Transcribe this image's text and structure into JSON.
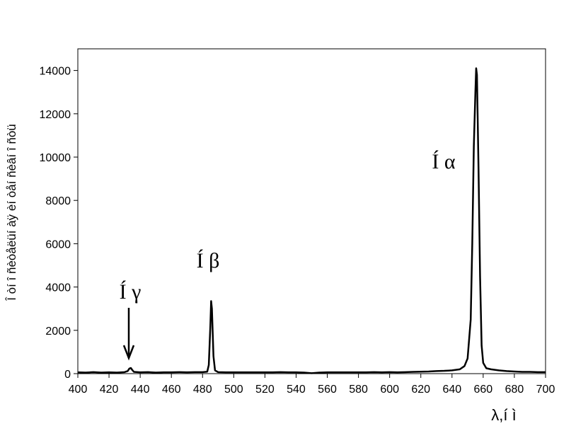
{
  "chart_data": {
    "type": "line",
    "xlabel": "λ,í ì",
    "ylabel": "Î òí î ñèòåëüí àÿ èí òåí ñèâí î ñòü",
    "annotations": [
      "Í γ",
      "Í β",
      "Í α"
    ],
    "color": "#000000",
    "x": [
      400,
      405,
      410,
      415,
      420,
      425,
      430,
      432,
      433,
      434,
      435,
      436,
      440,
      445,
      450,
      455,
      460,
      465,
      470,
      475,
      480,
      483,
      484,
      485,
      485.5,
      486,
      487,
      488,
      490,
      495,
      500,
      505,
      510,
      515,
      520,
      525,
      530,
      535,
      540,
      545,
      550,
      555,
      560,
      565,
      570,
      575,
      580,
      585,
      590,
      595,
      600,
      605,
      610,
      615,
      620,
      625,
      630,
      635,
      640,
      645,
      648,
      650,
      652,
      653,
      654,
      655,
      655.5,
      656,
      657,
      658,
      659,
      660,
      662,
      665,
      670,
      675,
      680,
      685,
      690,
      695,
      700
    ],
    "values": [
      60,
      50,
      70,
      50,
      60,
      50,
      70,
      120,
      230,
      260,
      160,
      80,
      60,
      70,
      50,
      60,
      60,
      70,
      60,
      70,
      70,
      90,
      400,
      2200,
      3350,
      3000,
      800,
      150,
      70,
      60,
      60,
      60,
      60,
      60,
      60,
      60,
      70,
      60,
      60,
      50,
      20,
      50,
      60,
      60,
      60,
      60,
      60,
      60,
      70,
      60,
      70,
      60,
      70,
      80,
      90,
      100,
      120,
      130,
      150,
      200,
      350,
      700,
      2500,
      6000,
      10500,
      13000,
      14100,
      13800,
      9500,
      4500,
      1300,
      500,
      250,
      200,
      150,
      120,
      100,
      80,
      80,
      70,
      70
    ],
    "xlim": [
      400,
      700
    ],
    "ylim": [
      0,
      15000
    ],
    "xticks": [
      400,
      420,
      440,
      460,
      480,
      500,
      520,
      540,
      560,
      580,
      600,
      620,
      640,
      660,
      680,
      700
    ],
    "yticks": [
      0,
      2000,
      4000,
      6000,
      8000,
      10000,
      12000,
      14000
    ]
  }
}
